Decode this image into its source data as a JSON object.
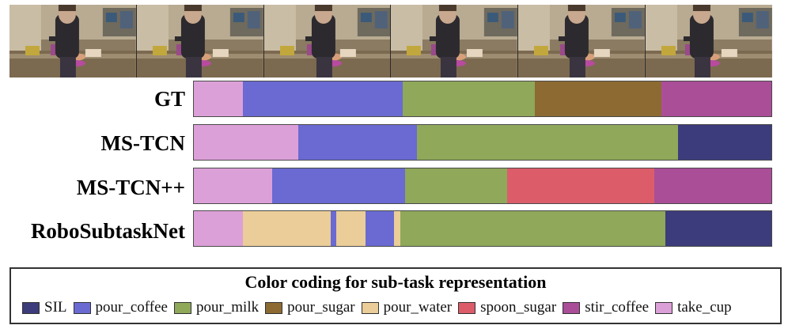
{
  "colors": {
    "SIL": "#3c3c7c",
    "pour_coffee": "#6a6ad2",
    "pour_milk": "#8fa85a",
    "pour_sugar": "#8c6a32",
    "pour_water": "#eacd98",
    "spoon_sugar": "#dc5c6a",
    "stir_coffee": "#aa4e98",
    "take_cup": "#dca0d8"
  },
  "frames_count": 6,
  "frame_images": [
    {
      "name": "frame-1",
      "scene": "kitchen"
    },
    {
      "name": "frame-2",
      "scene": "kitchen"
    },
    {
      "name": "frame-3",
      "scene": "kitchen"
    },
    {
      "name": "frame-4",
      "scene": "kitchen"
    },
    {
      "name": "frame-5",
      "scene": "kitchen"
    },
    {
      "name": "frame-6",
      "scene": "kitchen"
    }
  ],
  "rows": [
    {
      "label": "GT",
      "segments": [
        {
          "action": "take_cup",
          "fraction": 0.085
        },
        {
          "action": "pour_coffee",
          "fraction": 0.276
        },
        {
          "action": "pour_milk",
          "fraction": 0.229
        },
        {
          "action": "pour_sugar",
          "fraction": 0.219
        },
        {
          "action": "stir_coffee",
          "fraction": 0.191
        }
      ]
    },
    {
      "label": "MS-TCN",
      "segments": [
        {
          "action": "take_cup",
          "fraction": 0.181
        },
        {
          "action": "pour_coffee",
          "fraction": 0.205
        },
        {
          "action": "pour_milk",
          "fraction": 0.452
        },
        {
          "action": "SIL",
          "fraction": 0.162
        }
      ]
    },
    {
      "label": "MS-TCN++",
      "segments": [
        {
          "action": "take_cup",
          "fraction": 0.135
        },
        {
          "action": "pour_coffee",
          "fraction": 0.231
        },
        {
          "action": "pour_milk",
          "fraction": 0.176
        },
        {
          "action": "spoon_sugar",
          "fraction": 0.255
        },
        {
          "action": "stir_coffee",
          "fraction": 0.203
        }
      ]
    },
    {
      "label": "RoboSubtaskNet",
      "segments": [
        {
          "action": "take_cup",
          "fraction": 0.085
        },
        {
          "action": "pour_water",
          "fraction": 0.152
        },
        {
          "action": "pour_coffee",
          "fraction": 0.009
        },
        {
          "action": "pour_water",
          "fraction": 0.051
        },
        {
          "action": "pour_coffee",
          "fraction": 0.049
        },
        {
          "action": "pour_water",
          "fraction": 0.012
        },
        {
          "action": "pour_milk",
          "fraction": 0.458
        },
        {
          "action": "SIL",
          "fraction": 0.184
        }
      ]
    }
  ],
  "legend": {
    "title": "Color coding for sub-task representation",
    "items": [
      {
        "key": "SIL",
        "label": "SIL"
      },
      {
        "key": "pour_coffee",
        "label": "pour_coffee"
      },
      {
        "key": "pour_milk",
        "label": "pour_milk"
      },
      {
        "key": "pour_sugar",
        "label": "pour_sugar"
      },
      {
        "key": "pour_water",
        "label": "pour_water"
      },
      {
        "key": "spoon_sugar",
        "label": "spoon_sugar"
      },
      {
        "key": "stir_coffee",
        "label": "stir_coffee"
      },
      {
        "key": "take_cup",
        "label": "take_cup"
      }
    ]
  }
}
